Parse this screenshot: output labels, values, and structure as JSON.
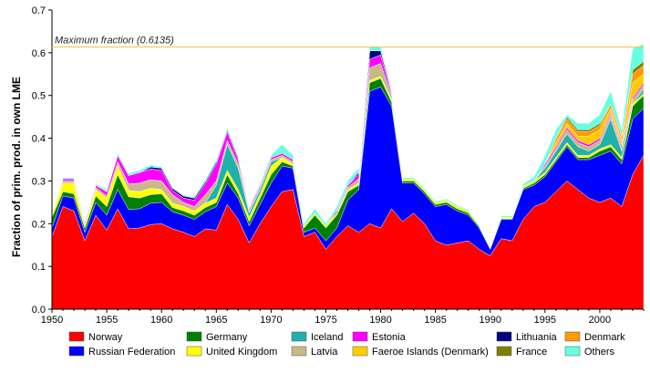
{
  "chart_data": {
    "type": "area",
    "stacked": true,
    "title": "",
    "xlabel": "",
    "ylabel": "Fraction of prim. prod. in own LME",
    "xlim": [
      1950,
      2004
    ],
    "ylim": [
      0,
      0.7
    ],
    "x_ticks": [
      1950,
      1955,
      1960,
      1965,
      1970,
      1975,
      1980,
      1985,
      1990,
      1995,
      2000
    ],
    "y_ticks": [
      0.0,
      0.1,
      0.2,
      0.3,
      0.4,
      0.5,
      0.6,
      0.7
    ],
    "x_tick_labels": [
      "1950",
      "1955",
      "1960",
      "1965",
      "1970",
      "1975",
      "1980",
      "1985",
      "1990",
      "1995",
      "2000"
    ],
    "y_tick_labels": [
      "0.0",
      "0.1",
      "0.2",
      "0.3",
      "0.4",
      "0.5",
      "0.6",
      "0.7"
    ],
    "annotation": {
      "label": "Maximum fraction (0.6135)",
      "value": 0.6135,
      "color": "#f2c14e"
    },
    "x": [
      1950,
      1951,
      1952,
      1953,
      1954,
      1955,
      1956,
      1957,
      1958,
      1959,
      1960,
      1961,
      1962,
      1963,
      1964,
      1965,
      1966,
      1967,
      1968,
      1969,
      1970,
      1971,
      1972,
      1973,
      1974,
      1975,
      1976,
      1977,
      1978,
      1979,
      1980,
      1981,
      1982,
      1983,
      1984,
      1985,
      1986,
      1987,
      1988,
      1989,
      1990,
      1991,
      1992,
      1993,
      1994,
      1995,
      1996,
      1997,
      1998,
      1999,
      2000,
      2001,
      2002,
      2003,
      2004
    ],
    "series": [
      {
        "name": "Norway",
        "color": "#ff0000",
        "values": [
          0.17,
          0.24,
          0.23,
          0.16,
          0.22,
          0.185,
          0.235,
          0.188,
          0.19,
          0.198,
          0.2,
          0.188,
          0.18,
          0.17,
          0.188,
          0.185,
          0.245,
          0.21,
          0.155,
          0.2,
          0.24,
          0.275,
          0.28,
          0.17,
          0.18,
          0.14,
          0.17,
          0.195,
          0.18,
          0.2,
          0.19,
          0.235,
          0.205,
          0.225,
          0.2,
          0.16,
          0.15,
          0.155,
          0.16,
          0.14,
          0.125,
          0.165,
          0.16,
          0.21,
          0.24,
          0.25,
          0.275,
          0.3,
          0.28,
          0.26,
          0.25,
          0.26,
          0.24,
          0.315,
          0.36
        ]
      },
      {
        "name": "Russian Federation",
        "color": "#0000ff",
        "values": [
          0.02,
          0.025,
          0.03,
          0.02,
          0.03,
          0.035,
          0.045,
          0.045,
          0.045,
          0.05,
          0.05,
          0.04,
          0.04,
          0.04,
          0.04,
          0.055,
          0.05,
          0.05,
          0.04,
          0.045,
          0.055,
          0.06,
          0.05,
          0.01,
          0.01,
          0.02,
          0.02,
          0.06,
          0.1,
          0.31,
          0.33,
          0.24,
          0.09,
          0.07,
          0.07,
          0.08,
          0.095,
          0.075,
          0.06,
          0.05,
          0.015,
          0.045,
          0.05,
          0.07,
          0.05,
          0.06,
          0.07,
          0.08,
          0.07,
          0.09,
          0.11,
          0.11,
          0.1,
          0.13,
          0.11
        ]
      },
      {
        "name": "Germany",
        "color": "#008000",
        "values": [
          0.025,
          0.01,
          0.01,
          0.01,
          0.015,
          0.02,
          0.035,
          0.03,
          0.025,
          0.02,
          0.02,
          0.01,
          0.01,
          0.01,
          0.01,
          0.01,
          0.02,
          0.01,
          0.01,
          0.015,
          0.02,
          0.01,
          0.005,
          0.01,
          0.03,
          0.03,
          0.03,
          0.02,
          0.01,
          0.02,
          0.02,
          0.01,
          0.005,
          0.005,
          0.005,
          0.005,
          0.005,
          0.005,
          0.005,
          0.003,
          0.002,
          0.002,
          0.002,
          0.003,
          0.005,
          0.005,
          0.005,
          0.005,
          0.005,
          0.005,
          0.01,
          0.01,
          0.01,
          0.03,
          0.03
        ]
      },
      {
        "name": "United Kingdom",
        "color": "#ffff00",
        "values": [
          0.005,
          0.02,
          0.025,
          0.005,
          0.015,
          0.02,
          0.02,
          0.015,
          0.015,
          0.015,
          0.01,
          0.01,
          0.01,
          0.01,
          0.01,
          0.01,
          0.01,
          0.01,
          0.01,
          0.01,
          0.02,
          0.01,
          0.005,
          0.005,
          0.005,
          0.005,
          0.005,
          0.005,
          0.005,
          0.005,
          0.005,
          0.005,
          0.005,
          0.005,
          0.005,
          0.005,
          0.005,
          0.005,
          0.005,
          0.003,
          0.002,
          0.003,
          0.003,
          0.005,
          0.005,
          0.005,
          0.005,
          0.005,
          0.005,
          0.005,
          0.005,
          0.005,
          0.005,
          0.005,
          0.005
        ]
      },
      {
        "name": "Iceland",
        "color": "#20b2aa",
        "values": [
          0.0,
          0.0,
          0.0,
          0.0,
          0.0,
          0.0,
          0.0,
          0.0,
          0.0,
          0.0,
          0.0,
          0.0,
          0.0,
          0.0,
          0.0,
          0.03,
          0.06,
          0.05,
          0.01,
          0.01,
          0.01,
          0.0,
          0.0,
          0.0,
          0.0,
          0.0,
          0.0,
          0.0,
          0.0,
          0.0,
          0.0,
          0.0,
          0.0,
          0.0,
          0.0,
          0.0,
          0.0,
          0.0,
          0.0,
          0.0,
          0.0,
          0.0,
          0.0,
          0.0,
          0.0,
          0.01,
          0.015,
          0.02,
          0.02,
          0.01,
          0.01,
          0.06,
          0.015,
          0.0,
          0.01
        ]
      },
      {
        "name": "Latvia",
        "color": "#c8b88a",
        "values": [
          0.0,
          0.005,
          0.005,
          0.005,
          0.005,
          0.005,
          0.01,
          0.015,
          0.02,
          0.02,
          0.02,
          0.02,
          0.01,
          0.01,
          0.02,
          0.01,
          0.01,
          0.01,
          0.005,
          0.005,
          0.005,
          0.005,
          0.005,
          0.0,
          0.0,
          0.0,
          0.0,
          0.005,
          0.01,
          0.03,
          0.03,
          0.01,
          0.0,
          0.0,
          0.0,
          0.0,
          0.0,
          0.0,
          0.0,
          0.0,
          0.0,
          0.0,
          0.0,
          0.0,
          0.0,
          0.005,
          0.005,
          0.01,
          0.01,
          0.01,
          0.01,
          0.01,
          0.01,
          0.01,
          0.01
        ]
      },
      {
        "name": "Estonia",
        "color": "#ff00ff",
        "values": [
          0.0,
          0.005,
          0.005,
          0.005,
          0.005,
          0.01,
          0.015,
          0.02,
          0.025,
          0.025,
          0.025,
          0.01,
          0.01,
          0.015,
          0.025,
          0.04,
          0.02,
          0.01,
          0.005,
          0.005,
          0.005,
          0.005,
          0.005,
          0.0,
          0.0,
          0.0,
          0.005,
          0.005,
          0.01,
          0.02,
          0.02,
          0.005,
          0.0,
          0.0,
          0.0,
          0.0,
          0.0,
          0.0,
          0.0,
          0.0,
          0.0,
          0.0,
          0.0,
          0.0,
          0.0,
          0.005,
          0.005,
          0.005,
          0.005,
          0.005,
          0.005,
          0.005,
          0.005,
          0.005,
          0.005
        ]
      },
      {
        "name": "Faeroe Islands (Denmark)",
        "color": "#ffcc00",
        "values": [
          0.0,
          0.0,
          0.0,
          0.0,
          0.0,
          0.0,
          0.0,
          0.0,
          0.0,
          0.0,
          0.0,
          0.0,
          0.0,
          0.0,
          0.0,
          0.0,
          0.0,
          0.0,
          0.0,
          0.0,
          0.0,
          0.0,
          0.0,
          0.0,
          0.0,
          0.0,
          0.0,
          0.0,
          0.0,
          0.0,
          0.0,
          0.0,
          0.0,
          0.0,
          0.0,
          0.0,
          0.0,
          0.0,
          0.0,
          0.0,
          0.0,
          0.0,
          0.0,
          0.0,
          0.0,
          0.0,
          0.01,
          0.01,
          0.01,
          0.02,
          0.02,
          0.01,
          0.01,
          0.035,
          0.02
        ]
      },
      {
        "name": "Lithuania",
        "color": "#000080",
        "values": [
          0.0,
          0.0,
          0.0,
          0.0,
          0.0,
          0.0,
          0.0,
          0.0,
          0.0,
          0.005,
          0.005,
          0.005,
          0.005,
          0.005,
          0.005,
          0.005,
          0.005,
          0.005,
          0.0,
          0.0,
          0.0,
          0.0,
          0.0,
          0.0,
          0.0,
          0.0,
          0.0,
          0.0,
          0.005,
          0.02,
          0.01,
          0.005,
          0.0,
          0.0,
          0.0,
          0.0,
          0.0,
          0.0,
          0.0,
          0.0,
          0.0,
          0.0,
          0.0,
          0.0,
          0.0,
          0.0,
          0.0,
          0.0,
          0.0,
          0.0,
          0.0,
          0.0,
          0.0,
          0.0,
          0.0
        ]
      },
      {
        "name": "Denmark",
        "color": "#ff9900",
        "values": [
          0.0,
          0.0,
          0.0,
          0.0,
          0.0,
          0.0,
          0.0,
          0.0,
          0.0,
          0.0,
          0.0,
          0.0,
          0.0,
          0.0,
          0.0,
          0.0,
          0.0,
          0.0,
          0.0,
          0.0,
          0.0,
          0.0,
          0.0,
          0.0,
          0.0,
          0.0,
          0.0,
          0.0,
          0.0,
          0.0,
          0.0,
          0.0,
          0.0,
          0.0,
          0.0,
          0.0,
          0.0,
          0.0,
          0.0,
          0.0,
          0.0,
          0.0,
          0.0,
          0.0,
          0.0,
          0.0,
          0.01,
          0.01,
          0.01,
          0.01,
          0.01,
          0.01,
          0.01,
          0.02,
          0.02
        ]
      },
      {
        "name": "France",
        "color": "#808000",
        "values": [
          0.0,
          0.0,
          0.0,
          0.0,
          0.0,
          0.0,
          0.0,
          0.0,
          0.0,
          0.0,
          0.0,
          0.0,
          0.0,
          0.0,
          0.0,
          0.0,
          0.0,
          0.0,
          0.0,
          0.0,
          0.0,
          0.0,
          0.0,
          0.0,
          0.0,
          0.0,
          0.0,
          0.0,
          0.0,
          0.0,
          0.0,
          0.0,
          0.0,
          0.0,
          0.0,
          0.0,
          0.0,
          0.0,
          0.0,
          0.0,
          0.0,
          0.0,
          0.0,
          0.0,
          0.0,
          0.0,
          0.0,
          0.005,
          0.005,
          0.005,
          0.005,
          0.0,
          0.0,
          0.01,
          0.01
        ]
      },
      {
        "name": "Others",
        "color": "#66ffe0",
        "values": [
          0.0,
          0.003,
          0.003,
          0.002,
          0.003,
          0.005,
          0.005,
          0.005,
          0.005,
          0.005,
          0.003,
          0.002,
          0.002,
          0.003,
          0.005,
          0.005,
          0.005,
          0.005,
          0.003,
          0.005,
          0.005,
          0.02,
          0.01,
          0.005,
          0.01,
          0.005,
          0.01,
          0.01,
          0.01,
          0.01,
          0.01,
          0.003,
          0.003,
          0.003,
          0.003,
          0.003,
          0.003,
          0.003,
          0.003,
          0.002,
          0.002,
          0.003,
          0.003,
          0.005,
          0.01,
          0.02,
          0.02,
          0.005,
          0.015,
          0.015,
          0.02,
          0.03,
          0.015,
          0.05,
          0.04
        ]
      }
    ],
    "legend_order": [
      "Norway",
      "Germany",
      "Iceland",
      "Estonia",
      "Lithuania",
      "Denmark",
      "Russian Federation",
      "United Kingdom",
      "Latvia",
      "Faeroe Islands (Denmark)",
      "France",
      "Others"
    ],
    "legend_position": "bottom"
  }
}
